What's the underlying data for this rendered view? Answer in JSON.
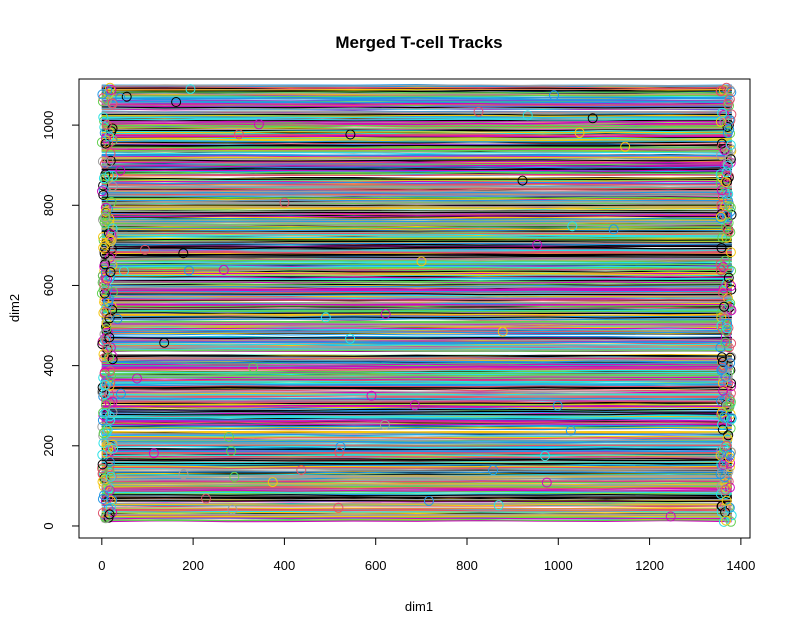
{
  "chart_data": {
    "type": "line",
    "title": "Merged T-cell Tracks",
    "xlabel": "dim1",
    "ylabel": "dim2",
    "xlim": [
      -50,
      1420
    ],
    "ylim": [
      -30,
      1115
    ],
    "x_ticks": [
      0,
      200,
      400,
      600,
      800,
      1000,
      1200,
      1400
    ],
    "y_ticks": [
      0,
      200,
      400,
      600,
      800,
      1000
    ],
    "grid": false,
    "legend": "none",
    "track_x_range": [
      0,
      1380
    ],
    "track_y_range": [
      10,
      1100
    ],
    "series_count": 1200,
    "palette": [
      "#000000",
      "#DF536B",
      "#61D04F",
      "#2297E6",
      "#28E2E5",
      "#CD0BBC",
      "#F5C710",
      "#9E9E9E"
    ],
    "series": [
      {
        "x": [
          0,
          1380
        ],
        "y": [
          20,
          20
        ]
      },
      {
        "x": [
          0,
          1380
        ],
        "y": [
          100,
          100
        ]
      },
      {
        "x": [
          0,
          1380
        ],
        "y": [
          200,
          200
        ]
      },
      {
        "x": [
          0,
          1380
        ],
        "y": [
          300,
          300
        ]
      },
      {
        "x": [
          0,
          1380
        ],
        "y": [
          400,
          400
        ]
      },
      {
        "x": [
          0,
          1380
        ],
        "y": [
          500,
          500
        ]
      },
      {
        "x": [
          0,
          1380
        ],
        "y": [
          600,
          600
        ]
      },
      {
        "x": [
          0,
          1380
        ],
        "y": [
          700,
          700
        ]
      },
      {
        "x": [
          0,
          1380
        ],
        "y": [
          800,
          800
        ]
      },
      {
        "x": [
          0,
          1380
        ],
        "y": [
          900,
          900
        ]
      },
      {
        "x": [
          0,
          1380
        ],
        "y": [
          1000,
          1000
        ]
      },
      {
        "x": [
          0,
          1380
        ],
        "y": [
          1090,
          1090
        ]
      }
    ]
  }
}
